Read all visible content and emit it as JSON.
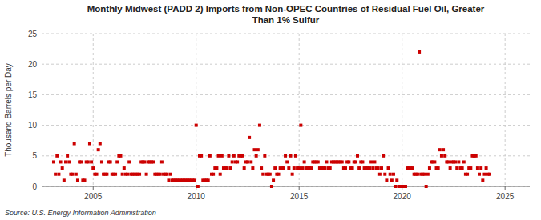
{
  "chart_data": {
    "type": "scatter",
    "title": "Monthly Midwest (PADD 2) Imports from Non-OPEC Countries of Residual Fuel Oil, Greater\nThan 1% Sulfur",
    "ylabel": "Thousand Barrels per Day",
    "source": "Source: U.S. Energy Information Administration",
    "color": "#cc0000",
    "marker": "square",
    "grid": true,
    "xlim": [
      2002.5,
      2026.2
    ],
    "xticks": [
      2005,
      2010,
      2015,
      2020,
      2025
    ],
    "ylim": [
      0,
      25
    ],
    "yticks": [
      0,
      5,
      10,
      15,
      20,
      25
    ],
    "x": [
      2003.083,
      2003.167,
      2003.25,
      2003.333,
      2003.417,
      2003.5,
      2003.583,
      2003.667,
      2003.75,
      2003.833,
      2003.917,
      2004.0,
      2004.083,
      2004.167,
      2004.25,
      2004.333,
      2004.417,
      2004.5,
      2004.583,
      2004.667,
      2004.75,
      2004.833,
      2004.917,
      2005.0,
      2005.083,
      2005.167,
      2005.25,
      2005.333,
      2005.417,
      2005.5,
      2005.583,
      2005.667,
      2005.75,
      2005.833,
      2005.917,
      2006.0,
      2006.083,
      2006.167,
      2006.25,
      2006.333,
      2006.417,
      2006.5,
      2006.583,
      2006.667,
      2006.75,
      2006.833,
      2006.917,
      2007.0,
      2007.083,
      2007.167,
      2007.25,
      2007.333,
      2007.417,
      2007.5,
      2007.583,
      2007.667,
      2007.75,
      2007.833,
      2007.917,
      2008.0,
      2008.083,
      2008.167,
      2008.25,
      2008.333,
      2008.417,
      2008.5,
      2008.583,
      2008.667,
      2008.75,
      2008.833,
      2008.917,
      2009.0,
      2009.083,
      2009.167,
      2009.25,
      2009.333,
      2009.417,
      2009.5,
      2009.583,
      2009.667,
      2009.75,
      2009.833,
      2009.917,
      2010.0,
      2010.083,
      2010.167,
      2010.25,
      2010.333,
      2010.417,
      2010.5,
      2010.583,
      2010.667,
      2010.75,
      2010.833,
      2010.917,
      2011.0,
      2011.083,
      2011.167,
      2011.25,
      2011.333,
      2011.417,
      2011.5,
      2011.583,
      2011.667,
      2011.75,
      2011.833,
      2011.917,
      2012.0,
      2012.083,
      2012.167,
      2012.25,
      2012.333,
      2012.417,
      2012.5,
      2012.583,
      2012.667,
      2012.75,
      2012.833,
      2012.917,
      2013.0,
      2013.083,
      2013.167,
      2013.25,
      2013.333,
      2013.417,
      2013.5,
      2013.583,
      2013.667,
      2013.75,
      2013.833,
      2013.917,
      2014.0,
      2014.083,
      2014.167,
      2014.25,
      2014.333,
      2014.417,
      2014.5,
      2014.583,
      2014.667,
      2014.75,
      2014.833,
      2014.917,
      2015.0,
      2015.083,
      2015.167,
      2015.25,
      2015.333,
      2015.417,
      2015.5,
      2015.583,
      2015.667,
      2015.75,
      2015.833,
      2015.917,
      2016.0,
      2016.083,
      2016.167,
      2016.25,
      2016.333,
      2016.417,
      2016.5,
      2016.583,
      2016.667,
      2016.75,
      2016.833,
      2016.917,
      2017.0,
      2017.083,
      2017.167,
      2017.25,
      2017.333,
      2017.417,
      2017.5,
      2017.583,
      2017.667,
      2017.75,
      2017.833,
      2017.917,
      2018.0,
      2018.083,
      2018.167,
      2018.25,
      2018.333,
      2018.417,
      2018.5,
      2018.583,
      2018.667,
      2018.75,
      2018.833,
      2018.917,
      2019.0,
      2019.083,
      2019.167,
      2019.25,
      2019.333,
      2019.417,
      2019.5,
      2019.583,
      2019.667,
      2019.75,
      2019.833,
      2019.917,
      2020.0,
      2020.083,
      2020.167,
      2020.25,
      2020.333,
      2020.417,
      2020.5,
      2020.583,
      2020.667,
      2020.75,
      2020.833,
      2020.917,
      2021.0,
      2021.083,
      2021.167,
      2021.25,
      2021.333,
      2021.417,
      2021.5,
      2021.583,
      2021.667,
      2021.75,
      2021.833,
      2021.917,
      2022.0,
      2022.083,
      2022.167,
      2022.25,
      2022.333,
      2022.417,
      2022.5,
      2022.583,
      2022.667,
      2022.75,
      2022.833,
      2022.917,
      2023.0,
      2023.083,
      2023.167,
      2023.25,
      2023.333,
      2023.417,
      2023.5,
      2023.583,
      2023.667,
      2023.75,
      2023.833,
      2023.917,
      2024.0,
      2024.083,
      2024.167,
      2024.25
    ],
    "values": [
      4.0,
      2.0,
      5.0,
      2.0,
      4.0,
      3.0,
      1.0,
      4.0,
      5.0,
      4.0,
      2.0,
      2.0,
      7.0,
      2.0,
      1.0,
      4.0,
      4.0,
      1.0,
      1.0,
      4.0,
      4.0,
      7.0,
      4.0,
      3.0,
      2.0,
      2.0,
      6.0,
      7.0,
      4.0,
      2.0,
      2.0,
      2.0,
      4.0,
      4.0,
      2.0,
      2.0,
      2.0,
      4.0,
      5.0,
      5.0,
      2.0,
      3.0,
      2.0,
      2.0,
      4.0,
      2.0,
      2.0,
      2.0,
      2.0,
      2.0,
      2.0,
      4.0,
      4.0,
      4.0,
      2.0,
      4.0,
      4.0,
      4.0,
      4.0,
      2.0,
      2.0,
      2.0,
      2.0,
      4.0,
      2.0,
      2.0,
      2.0,
      1.0,
      2.0,
      1.0,
      1.0,
      1.0,
      1.0,
      1.0,
      1.0,
      1.0,
      1.0,
      1.0,
      1.0,
      1.0,
      1.0,
      1.0,
      1.0,
      10.0,
      0.0,
      5.0,
      5.0,
      1.0,
      1.0,
      1.0,
      1.0,
      5.0,
      2.0,
      2.0,
      3.0,
      3.0,
      5.0,
      2.0,
      5.0,
      3.0,
      3.0,
      3.0,
      5.0,
      3.0,
      4.0,
      5.0,
      4.0,
      4.0,
      5.0,
      5.0,
      5.0,
      3.0,
      4.0,
      4.0,
      8.0,
      4.0,
      3.0,
      6.0,
      5.0,
      6.0,
      10.0,
      3.0,
      2.0,
      5.0,
      2.0,
      2.0,
      2.0,
      0.0,
      1.0,
      3.0,
      2.0,
      2.0,
      3.0,
      3.0,
      3.0,
      5.0,
      4.0,
      3.0,
      5.0,
      2.0,
      3.0,
      5.0,
      3.0,
      3.0,
      10.0,
      3.0,
      4.0,
      3.0,
      3.0,
      3.0,
      3.0,
      4.0,
      4.0,
      4.0,
      4.0,
      3.0,
      3.0,
      3.0,
      3.0,
      4.0,
      3.0,
      3.0,
      4.0,
      4.0,
      4.0,
      4.0,
      4.0,
      4.0,
      4.0,
      3.0,
      3.0,
      4.0,
      4.0,
      3.0,
      3.0,
      4.0,
      4.0,
      5.0,
      3.0,
      4.0,
      4.0,
      3.0,
      3.0,
      3.0,
      3.0,
      4.0,
      3.0,
      4.0,
      3.0,
      3.0,
      2.0,
      3.0,
      5.0,
      2.0,
      1.0,
      3.0,
      2.0,
      1.0,
      2.0,
      0.0,
      1.0,
      0.0,
      0.0,
      0.0,
      0.0,
      0.0,
      3.0,
      3.0,
      3.0,
      3.0,
      2.0,
      2.0,
      2.0,
      22.0,
      2.0,
      2.0,
      2.0,
      0.0,
      2.0,
      3.0,
      4.0,
      4.0,
      4.0,
      3.0,
      3.0,
      6.0,
      5.0,
      6.0,
      5.0,
      4.0,
      4.0,
      3.0,
      4.0,
      4.0,
      4.0,
      3.0,
      4.0,
      3.0,
      3.0,
      4.0,
      2.0,
      2.0,
      3.0,
      3.0,
      5.0,
      5.0,
      5.0,
      3.0,
      2.0,
      3.0,
      1.0,
      2.0,
      3.0,
      2.0,
      2.0
    ]
  }
}
